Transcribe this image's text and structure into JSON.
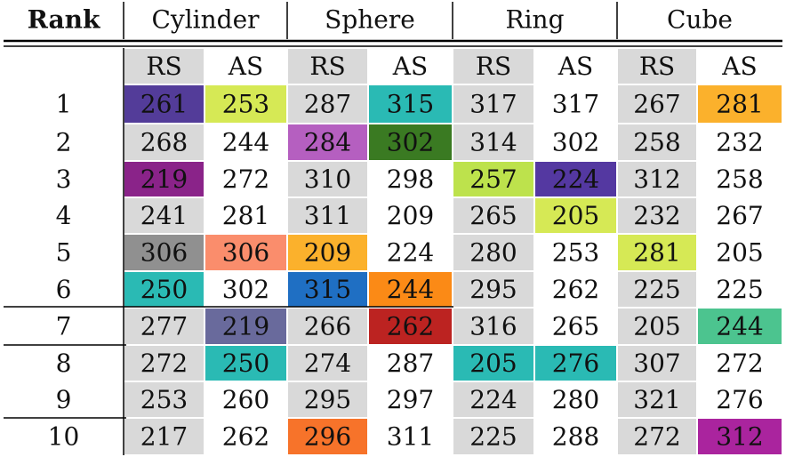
{
  "table": {
    "header": {
      "rank": "Rank",
      "groups": [
        "Cylinder",
        "Sphere",
        "Ring",
        "Cube"
      ],
      "subcols": [
        "RS",
        "AS",
        "RS",
        "AS",
        "RS",
        "AS",
        "RS",
        "AS"
      ]
    },
    "rows": [
      {
        "rank": "1",
        "cells": [
          "261",
          "253",
          "287",
          "315",
          "317",
          "317",
          "267",
          "281"
        ]
      },
      {
        "rank": "2",
        "cells": [
          "268",
          "244",
          "284",
          "302",
          "314",
          "302",
          "258",
          "232"
        ]
      },
      {
        "rank": "3",
        "cells": [
          "219",
          "272",
          "310",
          "298",
          "257",
          "224",
          "312",
          "258"
        ]
      },
      {
        "rank": "4",
        "cells": [
          "241",
          "281",
          "311",
          "209",
          "265",
          "205",
          "232",
          "267"
        ]
      },
      {
        "rank": "5",
        "cells": [
          "306",
          "306",
          "209",
          "224",
          "280",
          "253",
          "281",
          "205"
        ]
      },
      {
        "rank": "6",
        "cells": [
          "250",
          "302",
          "315",
          "244",
          "295",
          "262",
          "225",
          "225"
        ]
      },
      {
        "rank": "7",
        "cells": [
          "277",
          "219",
          "266",
          "262",
          "316",
          "265",
          "205",
          "244"
        ]
      },
      {
        "rank": "8",
        "cells": [
          "272",
          "250",
          "274",
          "287",
          "205",
          "276",
          "307",
          "272"
        ]
      },
      {
        "rank": "9",
        "cells": [
          "253",
          "260",
          "295",
          "297",
          "224",
          "280",
          "321",
          "276"
        ]
      },
      {
        "rank": "10",
        "cells": [
          "217",
          "262",
          "296",
          "311",
          "225",
          "288",
          "272",
          "312"
        ]
      }
    ],
    "cell_colors": [
      [
        "#533c99",
        "#d6e955",
        null,
        "#2abab4",
        null,
        null,
        null,
        "#fbb12c"
      ],
      [
        null,
        null,
        "#b55fc0",
        "#3a7a22",
        null,
        null,
        null,
        null
      ],
      [
        "#8a2389",
        null,
        null,
        null,
        "#bde24c",
        "#5438a1",
        null,
        null
      ],
      [
        null,
        null,
        null,
        null,
        null,
        "#d6e955",
        null,
        null
      ],
      [
        "#909090",
        "#fa8d6c",
        "#fbb12c",
        null,
        null,
        null,
        "#d6e955",
        null
      ],
      [
        "#2abab4",
        null,
        "#1f6fc3",
        "#fb8a16",
        null,
        null,
        null,
        null
      ],
      [
        null,
        "#696a9c",
        null,
        "#bc2321",
        null,
        null,
        null,
        "#4cc48f"
      ],
      [
        null,
        "#2abab4",
        null,
        null,
        "#2abab4",
        "#2abab4",
        null,
        null
      ],
      [
        null,
        null,
        null,
        null,
        null,
        null,
        null,
        null
      ],
      [
        null,
        null,
        "#f7732a",
        null,
        null,
        null,
        null,
        "#aa249e"
      ]
    ],
    "colors": {
      "rs_background": "#d9d9d9",
      "as_background": "#ffffff",
      "rule": "#000000"
    }
  }
}
